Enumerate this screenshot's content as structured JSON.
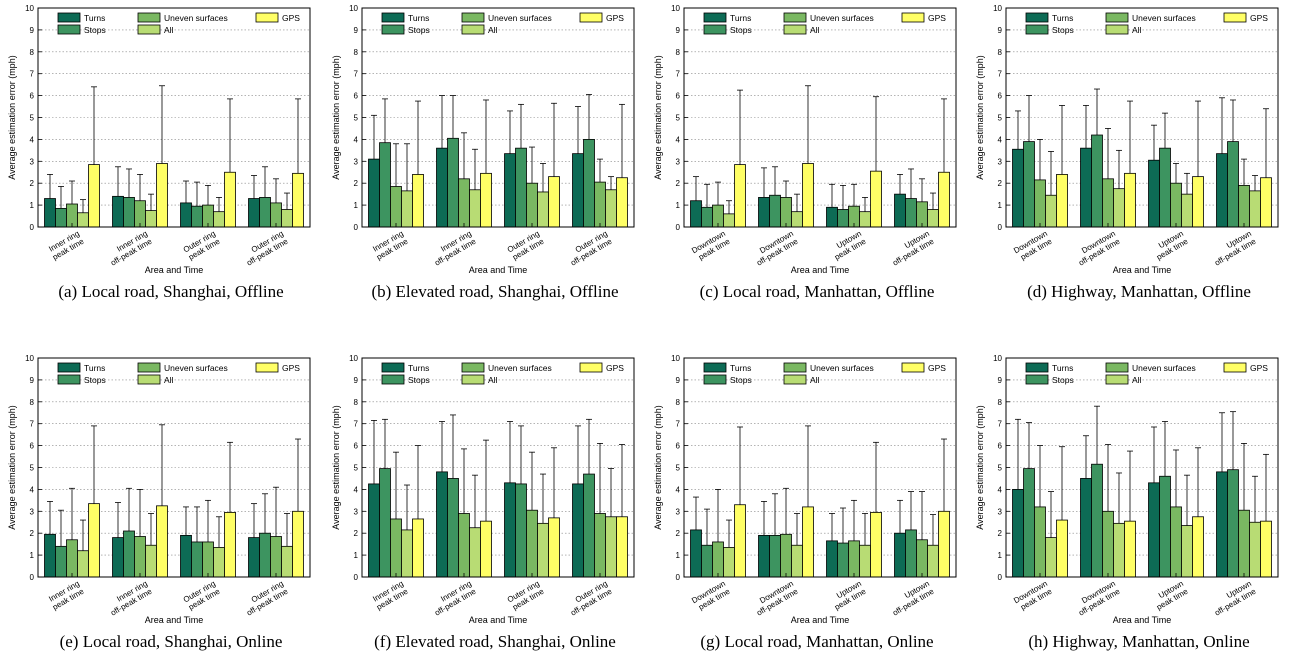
{
  "legend": {
    "turns": "Turns",
    "stops": "Stops",
    "uneven": "Uneven surfaces",
    "all": "All",
    "gps": "GPS"
  },
  "colors": {
    "turns": "#0d6b55",
    "stops": "#3d9460",
    "uneven": "#7ab862",
    "all": "#b8dc74",
    "gps": "#ffff66"
  },
  "chart_data": [
    {
      "type": "bar",
      "caption": "(a) Local road, Shanghai, Offline",
      "xlabel": "Area and Time",
      "ylabel": "Average estimation error (mph)",
      "ylim": [
        0,
        10
      ],
      "yticks": [
        0,
        1,
        2,
        3,
        4,
        5,
        6,
        7,
        8,
        9,
        10
      ],
      "grid": true,
      "legend_position": "top",
      "categories": [
        [
          "Inner ring",
          "peak time"
        ],
        [
          "Inner ring",
          "off-peak time"
        ],
        [
          "Outer ring",
          "peak time"
        ],
        [
          "Outer ring",
          "off-peak time"
        ]
      ],
      "series": [
        {
          "name": "Turns",
          "values": [
            1.3,
            1.4,
            1.1,
            1.3
          ],
          "errors": [
            2.4,
            2.75,
            2.1,
            2.35
          ]
        },
        {
          "name": "Stops",
          "values": [
            0.85,
            1.35,
            0.95,
            1.35
          ],
          "errors": [
            1.85,
            2.65,
            2.05,
            2.75
          ]
        },
        {
          "name": "Uneven surfaces",
          "values": [
            1.05,
            1.2,
            1.0,
            1.1
          ],
          "errors": [
            2.1,
            2.4,
            1.9,
            2.2
          ]
        },
        {
          "name": "All",
          "values": [
            0.65,
            0.75,
            0.7,
            0.8
          ],
          "errors": [
            1.25,
            1.5,
            1.35,
            1.55
          ]
        },
        {
          "name": "GPS",
          "values": [
            2.85,
            2.9,
            2.5,
            2.45
          ],
          "errors": [
            6.4,
            6.45,
            5.85,
            5.85
          ]
        }
      ]
    },
    {
      "type": "bar",
      "caption": "(b) Elevated road, Shanghai, Offline",
      "xlabel": "Area and Time",
      "ylabel": "Average estimation error (mph)",
      "ylim": [
        0,
        10
      ],
      "yticks": [
        0,
        1,
        2,
        3,
        4,
        5,
        6,
        7,
        8,
        9,
        10
      ],
      "grid": true,
      "legend_position": "top",
      "categories": [
        [
          "Inner ring",
          "peak time"
        ],
        [
          "Inner ring",
          "off-peak time"
        ],
        [
          "Outer ring",
          "peak time"
        ],
        [
          "Outer ring",
          "off-peak time"
        ]
      ],
      "series": [
        {
          "name": "Turns",
          "values": [
            3.1,
            3.6,
            3.35,
            3.35
          ],
          "errors": [
            5.1,
            6.0,
            5.3,
            5.5
          ]
        },
        {
          "name": "Stops",
          "values": [
            3.85,
            4.05,
            3.6,
            4.0
          ],
          "errors": [
            5.85,
            6.0,
            5.6,
            6.05
          ]
        },
        {
          "name": "Uneven surfaces",
          "values": [
            1.85,
            2.2,
            2.0,
            2.05
          ],
          "errors": [
            3.8,
            4.3,
            3.65,
            3.1
          ]
        },
        {
          "name": "All",
          "values": [
            1.65,
            1.7,
            1.6,
            1.7
          ],
          "errors": [
            3.8,
            3.55,
            2.9,
            2.3
          ]
        },
        {
          "name": "GPS",
          "values": [
            2.4,
            2.45,
            2.3,
            2.25
          ],
          "errors": [
            5.75,
            5.8,
            5.65,
            5.6
          ]
        }
      ]
    },
    {
      "type": "bar",
      "caption": "(c) Local road, Manhattan, Offline",
      "xlabel": "Area and Time",
      "ylabel": "Average estimation error (mph)",
      "ylim": [
        0,
        10
      ],
      "yticks": [
        0,
        1,
        2,
        3,
        4,
        5,
        6,
        7,
        8,
        9,
        10
      ],
      "grid": true,
      "legend_position": "top",
      "categories": [
        [
          "Downtown",
          "peak time"
        ],
        [
          "Downtown",
          "off-peak time"
        ],
        [
          "Uptown",
          "peak time"
        ],
        [
          "Uptown",
          "off-peak time"
        ]
      ],
      "series": [
        {
          "name": "Turns",
          "values": [
            1.2,
            1.35,
            0.9,
            1.5
          ],
          "errors": [
            2.3,
            2.7,
            1.95,
            2.4
          ]
        },
        {
          "name": "Stops",
          "values": [
            0.9,
            1.45,
            0.8,
            1.3
          ],
          "errors": [
            1.95,
            2.75,
            1.9,
            2.65
          ]
        },
        {
          "name": "Uneven surfaces",
          "values": [
            1.0,
            1.35,
            0.95,
            1.15
          ],
          "errors": [
            2.05,
            2.1,
            1.95,
            2.2
          ]
        },
        {
          "name": "All",
          "values": [
            0.6,
            0.7,
            0.7,
            0.8
          ],
          "errors": [
            1.2,
            1.5,
            1.35,
            1.55
          ]
        },
        {
          "name": "GPS",
          "values": [
            2.85,
            2.9,
            2.55,
            2.5
          ],
          "errors": [
            6.25,
            6.45,
            5.95,
            5.85
          ]
        }
      ]
    },
    {
      "type": "bar",
      "caption": "(d) Highway, Manhattan, Offline",
      "xlabel": "Area and Time",
      "ylabel": "Average estimation error (mph)",
      "ylim": [
        0,
        10
      ],
      "yticks": [
        0,
        1,
        2,
        3,
        4,
        5,
        6,
        7,
        8,
        9,
        10
      ],
      "grid": true,
      "legend_position": "top",
      "categories": [
        [
          "Downtown",
          "peak time"
        ],
        [
          "Downtown",
          "off-peak time"
        ],
        [
          "Uptown",
          "peak time"
        ],
        [
          "Uptown",
          "off-peak time"
        ]
      ],
      "series": [
        {
          "name": "Turns",
          "values": [
            3.55,
            3.6,
            3.05,
            3.35
          ],
          "errors": [
            5.3,
            5.55,
            4.65,
            5.9
          ]
        },
        {
          "name": "Stops",
          "values": [
            3.9,
            4.2,
            3.6,
            3.9
          ],
          "errors": [
            6.0,
            6.3,
            5.2,
            5.8
          ]
        },
        {
          "name": "Uneven surfaces",
          "values": [
            2.15,
            2.2,
            2.0,
            1.9
          ],
          "errors": [
            4.0,
            4.5,
            2.9,
            3.1
          ]
        },
        {
          "name": "All",
          "values": [
            1.45,
            1.75,
            1.5,
            1.65
          ],
          "errors": [
            3.45,
            3.5,
            2.45,
            2.35
          ]
        },
        {
          "name": "GPS",
          "values": [
            2.4,
            2.45,
            2.3,
            2.25
          ],
          "errors": [
            5.55,
            5.75,
            5.75,
            5.4
          ]
        }
      ]
    },
    {
      "type": "bar",
      "caption": "(e) Local road, Shanghai, Online",
      "xlabel": "Area and Time",
      "ylabel": "Average estimation error (mph)",
      "ylim": [
        0,
        10
      ],
      "yticks": [
        0,
        1,
        2,
        3,
        4,
        5,
        6,
        7,
        8,
        9,
        10
      ],
      "grid": true,
      "legend_position": "top",
      "categories": [
        [
          "Inner ring",
          "peak time"
        ],
        [
          "Inner ring",
          "off-peak time"
        ],
        [
          "Outer ring",
          "peak time"
        ],
        [
          "Outer ring",
          "off-peak time"
        ]
      ],
      "series": [
        {
          "name": "Turns",
          "values": [
            1.95,
            1.8,
            1.9,
            1.8
          ],
          "errors": [
            3.45,
            3.4,
            3.2,
            3.35
          ]
        },
        {
          "name": "Stops",
          "values": [
            1.4,
            2.1,
            1.6,
            2.0
          ],
          "errors": [
            3.05,
            4.05,
            3.2,
            3.8
          ]
        },
        {
          "name": "Uneven surfaces",
          "values": [
            1.7,
            1.85,
            1.6,
            1.85
          ],
          "errors": [
            4.05,
            4.0,
            3.5,
            4.1
          ]
        },
        {
          "name": "All",
          "values": [
            1.2,
            1.45,
            1.35,
            1.4
          ],
          "errors": [
            2.6,
            2.9,
            2.75,
            2.9
          ]
        },
        {
          "name": "GPS",
          "values": [
            3.35,
            3.25,
            2.95,
            3.0
          ],
          "errors": [
            6.9,
            6.95,
            6.15,
            6.3
          ]
        }
      ]
    },
    {
      "type": "bar",
      "caption": "(f) Elevated road, Shanghai, Online",
      "xlabel": "Area and Time",
      "ylabel": "Average estimation error (mph)",
      "ylim": [
        0,
        10
      ],
      "yticks": [
        0,
        1,
        2,
        3,
        4,
        5,
        6,
        7,
        8,
        9,
        10
      ],
      "grid": true,
      "legend_position": "top",
      "categories": [
        [
          "Inner ring",
          "peak time"
        ],
        [
          "Inner ring",
          "off-peak time"
        ],
        [
          "Outer ring",
          "peak time"
        ],
        [
          "Outer ring",
          "off-peak time"
        ]
      ],
      "series": [
        {
          "name": "Turns",
          "values": [
            4.25,
            4.8,
            4.3,
            4.25
          ],
          "errors": [
            7.15,
            7.1,
            7.1,
            6.9
          ]
        },
        {
          "name": "Stops",
          "values": [
            4.95,
            4.5,
            4.25,
            4.7
          ],
          "errors": [
            7.2,
            7.4,
            6.9,
            7.2
          ]
        },
        {
          "name": "Uneven surfaces",
          "values": [
            2.65,
            2.9,
            3.05,
            2.9
          ],
          "errors": [
            5.7,
            5.85,
            5.7,
            6.1
          ]
        },
        {
          "name": "All",
          "values": [
            2.15,
            2.25,
            2.45,
            2.75
          ],
          "errors": [
            4.2,
            4.65,
            4.7,
            4.95
          ]
        },
        {
          "name": "GPS",
          "values": [
            2.65,
            2.55,
            2.7,
            2.75
          ],
          "errors": [
            6.0,
            6.25,
            5.9,
            6.05
          ]
        }
      ]
    },
    {
      "type": "bar",
      "caption": "(g) Local road, Manhattan, Online",
      "xlabel": "Area and Time",
      "ylabel": "Average estimation error (mph)",
      "ylim": [
        0,
        10
      ],
      "yticks": [
        0,
        1,
        2,
        3,
        4,
        5,
        6,
        7,
        8,
        9,
        10
      ],
      "grid": true,
      "legend_position": "top",
      "categories": [
        [
          "Downtown",
          "peak time"
        ],
        [
          "Downtown",
          "off-peak time"
        ],
        [
          "Uptown",
          "peak time"
        ],
        [
          "Uptown",
          "off-peak time"
        ]
      ],
      "series": [
        {
          "name": "Turns",
          "values": [
            2.15,
            1.9,
            1.65,
            2.0
          ],
          "errors": [
            3.65,
            3.45,
            2.9,
            3.5
          ]
        },
        {
          "name": "Stops",
          "values": [
            1.45,
            1.9,
            1.55,
            2.15
          ],
          "errors": [
            3.1,
            3.8,
            3.15,
            3.9
          ]
        },
        {
          "name": "Uneven surfaces",
          "values": [
            1.6,
            1.95,
            1.65,
            1.7
          ],
          "errors": [
            4.0,
            4.05,
            3.5,
            3.9
          ]
        },
        {
          "name": "All",
          "values": [
            1.35,
            1.45,
            1.45,
            1.45
          ],
          "errors": [
            2.6,
            2.9,
            2.9,
            2.85
          ]
        },
        {
          "name": "GPS",
          "values": [
            3.3,
            3.2,
            2.95,
            3.0
          ],
          "errors": [
            6.85,
            6.9,
            6.15,
            6.3
          ]
        }
      ]
    },
    {
      "type": "bar",
      "caption": "(h) Highway, Manhattan, Online",
      "xlabel": "Area and Time",
      "ylabel": "Average estimation error (mph)",
      "ylim": [
        0,
        10
      ],
      "yticks": [
        0,
        1,
        2,
        3,
        4,
        5,
        6,
        7,
        8,
        9,
        10
      ],
      "grid": true,
      "legend_position": "top",
      "categories": [
        [
          "Downtown",
          "peak time"
        ],
        [
          "Downtown",
          "off-peak time"
        ],
        [
          "Uptown",
          "peak time"
        ],
        [
          "Uptown",
          "off-peak time"
        ]
      ],
      "series": [
        {
          "name": "Turns",
          "values": [
            4.0,
            4.5,
            4.3,
            4.8
          ],
          "errors": [
            7.2,
            6.45,
            6.85,
            7.5
          ]
        },
        {
          "name": "Stops",
          "values": [
            4.95,
            5.15,
            4.6,
            4.9
          ],
          "errors": [
            7.05,
            7.8,
            7.1,
            7.55
          ]
        },
        {
          "name": "Uneven surfaces",
          "values": [
            3.2,
            3.0,
            3.2,
            3.05
          ],
          "errors": [
            6.0,
            6.05,
            5.8,
            6.1
          ]
        },
        {
          "name": "All",
          "values": [
            1.8,
            2.45,
            2.35,
            2.5
          ],
          "errors": [
            3.9,
            4.75,
            4.65,
            4.6
          ]
        },
        {
          "name": "GPS",
          "values": [
            2.6,
            2.55,
            2.75,
            2.55
          ],
          "errors": [
            5.95,
            5.75,
            5.9,
            5.6
          ]
        }
      ]
    }
  ]
}
